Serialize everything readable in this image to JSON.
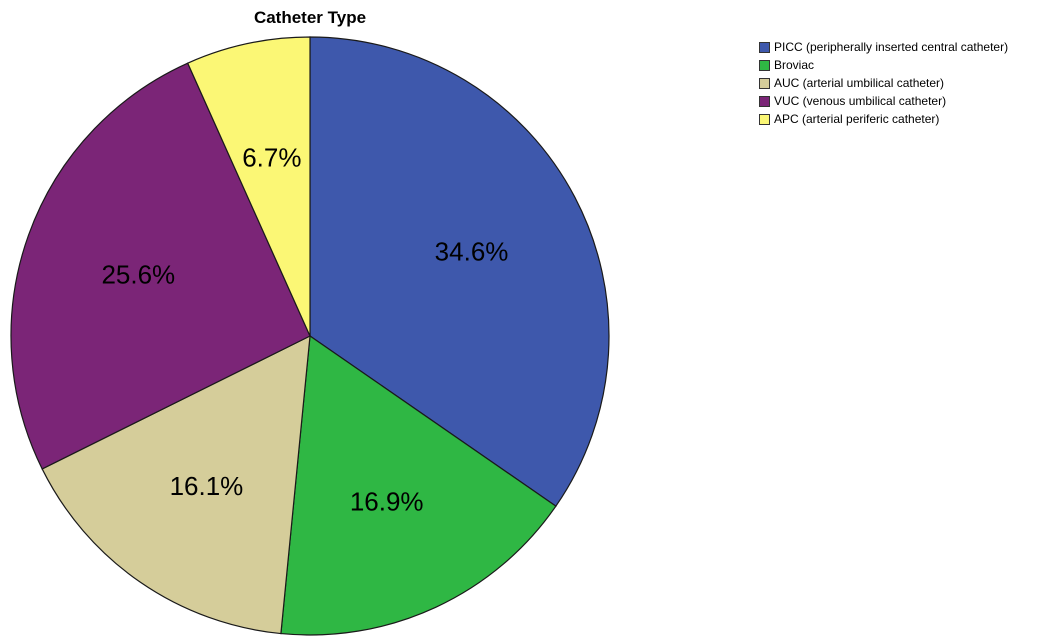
{
  "chart_data": {
    "type": "pie",
    "title": "Catheter Type",
    "start_angle_deg": 0,
    "direction": "clockwise",
    "legend_position": "top-right",
    "slices": [
      {
        "name": "PICC (peripherally inserted central catheter)",
        "value": 34.6,
        "label": "34.6%",
        "color": "#3e58ac"
      },
      {
        "name": "Broviac",
        "value": 16.9,
        "label": "16.9%",
        "color": "#2fb744"
      },
      {
        "name": "AUC (arterial umbilical catheter)",
        "value": 16.1,
        "label": "16.1%",
        "color": "#d5cd9a"
      },
      {
        "name": "VUC (venous umbilical catheter)",
        "value": 25.6,
        "label": "25.6%",
        "color": "#7b2577"
      },
      {
        "name": "APC (arterial periferic catheter)",
        "value": 6.7,
        "label": "6.7%",
        "color": "#fbf775"
      }
    ]
  }
}
